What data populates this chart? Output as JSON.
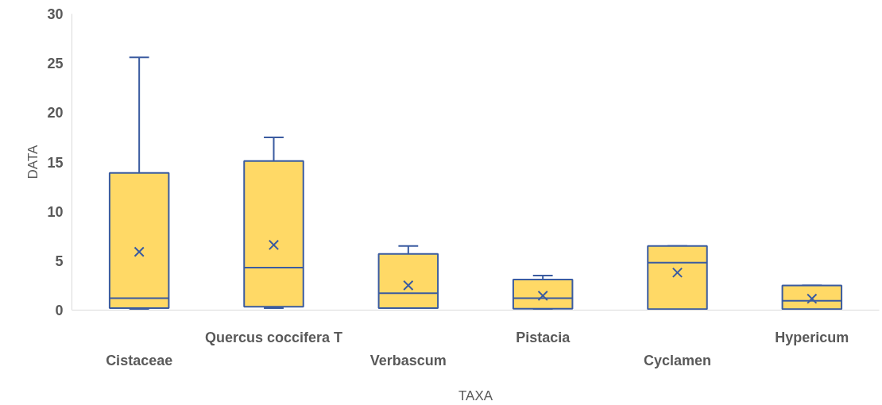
{
  "chart_data": {
    "type": "box",
    "xlabel": "TAXA",
    "ylabel": "DATA",
    "categories": [
      "Cistaceae",
      "Quercus coccifera T",
      "Verbascum",
      "Pistacia",
      "Cyclamen",
      "Hypericum"
    ],
    "series": [
      {
        "color": "#ffd966",
        "boxes": [
          {
            "low": 0.1,
            "q1": 0.2,
            "median": 1.2,
            "q3": 13.9,
            "high": 25.6,
            "mean": 5.9
          },
          {
            "low": 0.2,
            "q1": 0.35,
            "median": 4.3,
            "q3": 15.1,
            "high": 17.5,
            "mean": 6.6
          },
          {
            "low": 0.2,
            "q1": 0.2,
            "median": 1.7,
            "q3": 5.7,
            "high": 6.5,
            "mean": 2.5
          },
          {
            "low": 0.1,
            "q1": 0.15,
            "median": 1.2,
            "q3": 3.1,
            "high": 3.5,
            "mean": 1.45
          },
          {
            "low": 0.1,
            "q1": 0.1,
            "median": 4.8,
            "q3": 6.5,
            "high": 6.5,
            "mean": 3.8
          },
          {
            "low": 0.1,
            "q1": 0.1,
            "median": 0.95,
            "q3": 2.5,
            "high": 2.5,
            "mean": 1.15
          }
        ]
      }
    ],
    "ylim": [
      0,
      30
    ],
    "yticks": [
      0,
      5,
      10,
      15,
      20,
      25,
      30
    ],
    "marker": "cross",
    "grid": false
  }
}
